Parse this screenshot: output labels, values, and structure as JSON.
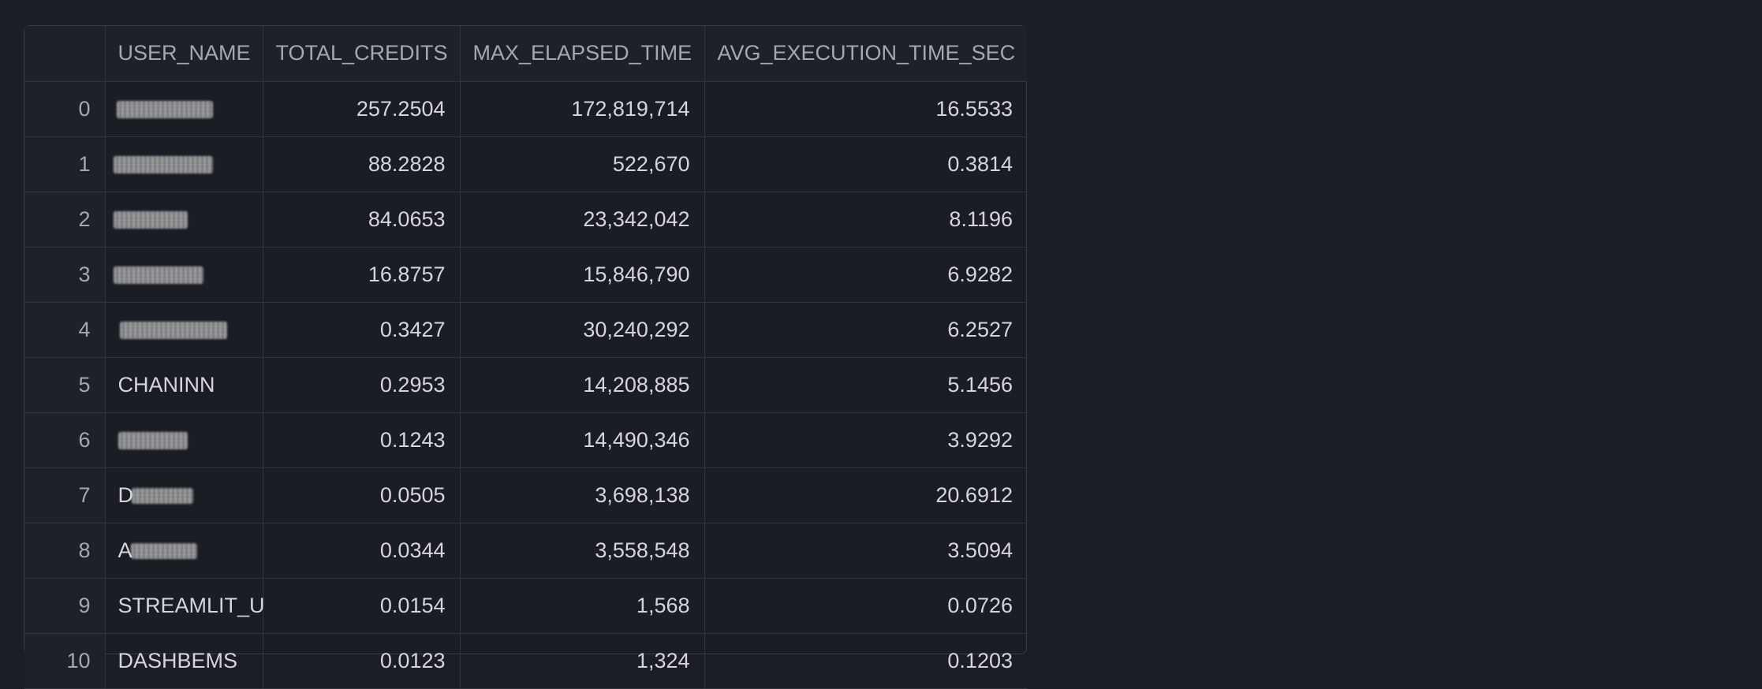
{
  "table": {
    "columns": [
      "",
      "USER_NAME",
      "TOTAL_CREDITS",
      "MAX_ELAPSED_TIME",
      "AVG_EXECUTION_TIME_SEC"
    ],
    "rows": [
      {
        "index": "0",
        "user_name": "",
        "total_credits": "257.2504",
        "max_elapsed_time": "172,819,714",
        "avg_execution_time_sec": "16.5533"
      },
      {
        "index": "1",
        "user_name": "",
        "total_credits": "88.2828",
        "max_elapsed_time": "522,670",
        "avg_execution_time_sec": "0.3814"
      },
      {
        "index": "2",
        "user_name": "",
        "total_credits": "84.0653",
        "max_elapsed_time": "23,342,042",
        "avg_execution_time_sec": "8.1196"
      },
      {
        "index": "3",
        "user_name": "",
        "total_credits": "16.8757",
        "max_elapsed_time": "15,846,790",
        "avg_execution_time_sec": "6.9282"
      },
      {
        "index": "4",
        "user_name": "",
        "total_credits": "0.3427",
        "max_elapsed_time": "30,240,292",
        "avg_execution_time_sec": "6.2527"
      },
      {
        "index": "5",
        "user_name": "CHANINN",
        "total_credits": "0.2953",
        "max_elapsed_time": "14,208,885",
        "avg_execution_time_sec": "5.1456"
      },
      {
        "index": "6",
        "user_name": "",
        "total_credits": "0.1243",
        "max_elapsed_time": "14,490,346",
        "avg_execution_time_sec": "3.9292"
      },
      {
        "index": "7",
        "user_name": "D",
        "total_credits": "0.0505",
        "max_elapsed_time": "3,698,138",
        "avg_execution_time_sec": "20.6912"
      },
      {
        "index": "8",
        "user_name": "A",
        "total_credits": "0.0344",
        "max_elapsed_time": "3,558,548",
        "avg_execution_time_sec": "3.5094"
      },
      {
        "index": "9",
        "user_name": "STREAMLIT_U",
        "total_credits": "0.0154",
        "max_elapsed_time": "1,568",
        "avg_execution_time_sec": "0.0726"
      },
      {
        "index": "10",
        "user_name": "DASHBEMS",
        "total_credits": "0.0123",
        "max_elapsed_time": "1,324",
        "avg_execution_time_sec": "0.1203"
      }
    ]
  },
  "colors": {
    "background": "#1b1e24",
    "grid_border": "#31343c",
    "header_text": "#a5a8b1",
    "cell_text": "#d4d6dc"
  }
}
